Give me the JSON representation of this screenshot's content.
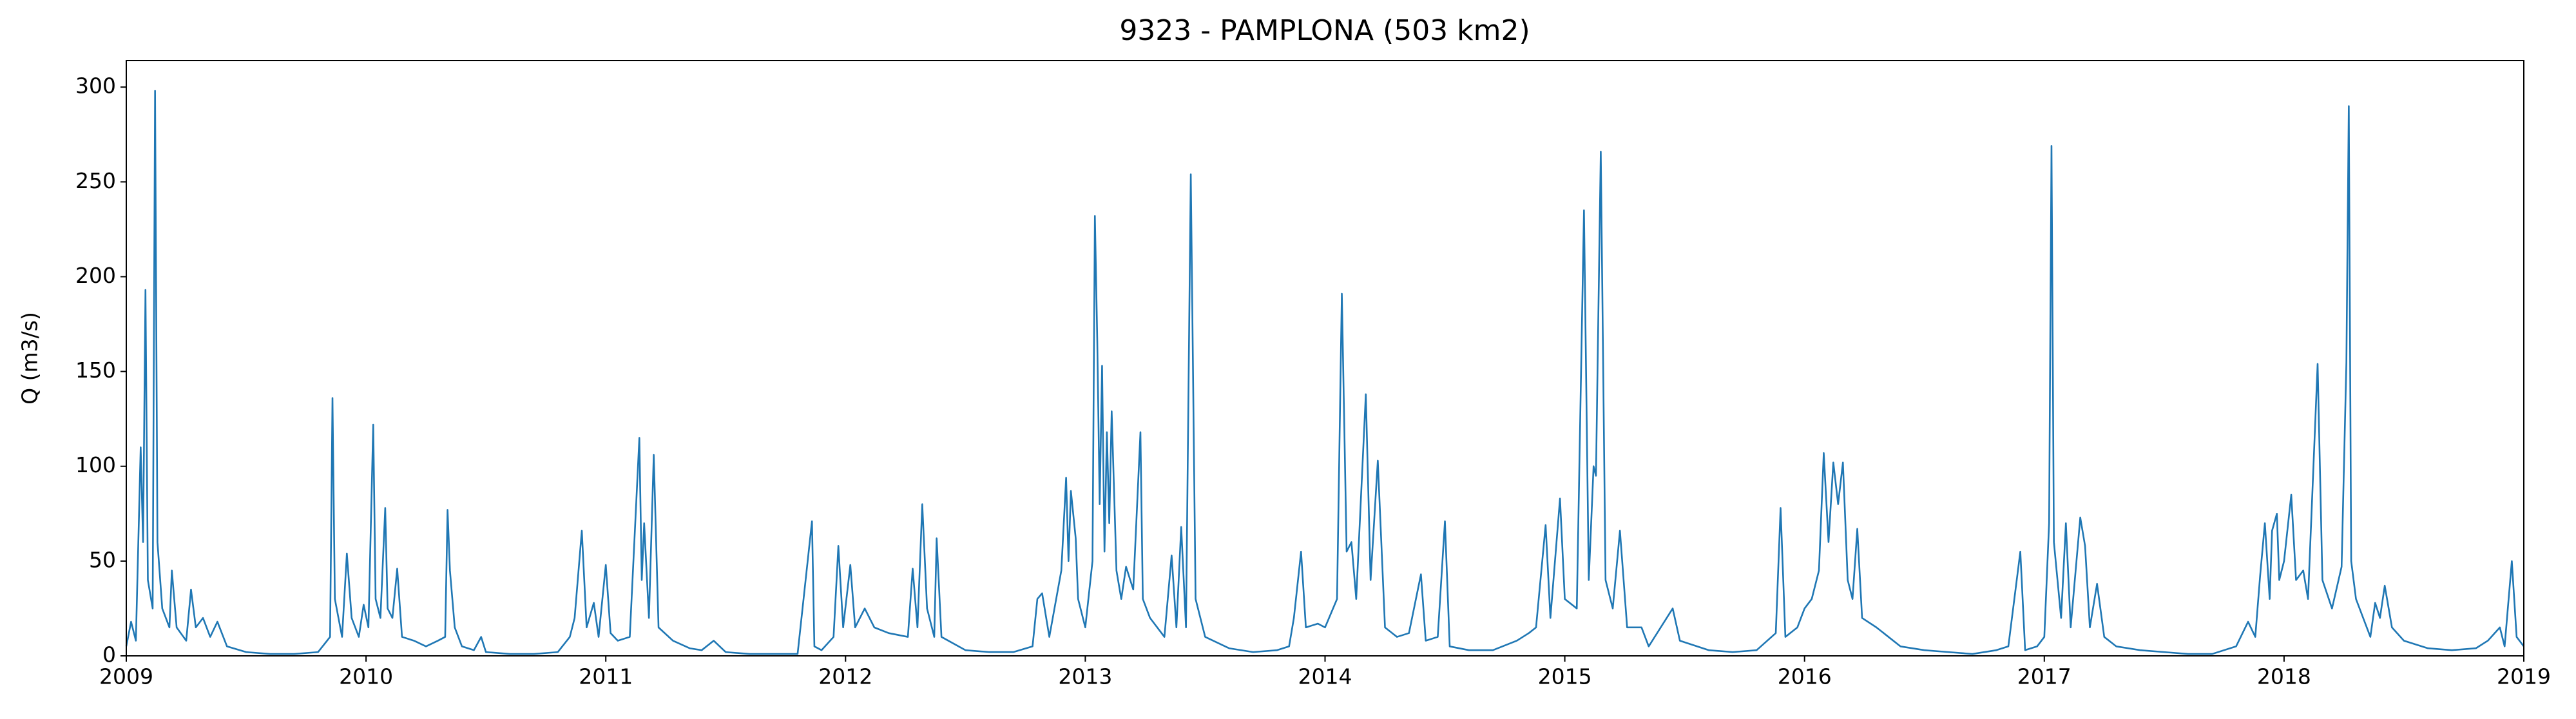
{
  "chart_data": {
    "type": "line",
    "title": "9323 - PAMPLONA (503 km2)",
    "ylabel": "Q (m3/s)",
    "xlim": [
      2009,
      2019
    ],
    "xticks": [
      2009,
      2010,
      2011,
      2012,
      2013,
      2014,
      2015,
      2016,
      2017,
      2018,
      2019
    ],
    "ylim": [
      0,
      314
    ],
    "yticks": [
      0,
      50,
      100,
      150,
      200,
      250,
      300
    ],
    "grid": false,
    "series": [
      {
        "name": "Q",
        "color": "#1f77b4",
        "x": [
          2009.0,
          2009.02,
          2009.04,
          2009.06,
          2009.07,
          2009.08,
          2009.09,
          2009.11,
          2009.12,
          2009.13,
          2009.15,
          2009.18,
          2009.19,
          2009.21,
          2009.25,
          2009.27,
          2009.29,
          2009.32,
          2009.35,
          2009.38,
          2009.42,
          2009.5,
          2009.6,
          2009.7,
          2009.8,
          2009.85,
          2009.86,
          2009.87,
          2009.9,
          2009.92,
          2009.94,
          2009.97,
          2009.99,
          2010.01,
          2010.03,
          2010.04,
          2010.06,
          2010.08,
          2010.09,
          2010.11,
          2010.13,
          2010.15,
          2010.2,
          2010.25,
          2010.3,
          2010.33,
          2010.34,
          2010.35,
          2010.37,
          2010.4,
          2010.45,
          2010.48,
          2010.5,
          2010.6,
          2010.7,
          2010.8,
          2010.85,
          2010.87,
          2010.9,
          2010.92,
          2010.95,
          2010.97,
          2011.0,
          2011.02,
          2011.05,
          2011.1,
          2011.14,
          2011.15,
          2011.16,
          2011.18,
          2011.2,
          2011.22,
          2011.28,
          2011.35,
          2011.4,
          2011.45,
          2011.5,
          2011.6,
          2011.7,
          2011.8,
          2011.86,
          2011.87,
          2011.9,
          2011.95,
          2011.97,
          2011.99,
          2012.02,
          2012.04,
          2012.08,
          2012.12,
          2012.18,
          2012.26,
          2012.28,
          2012.3,
          2012.32,
          2012.34,
          2012.37,
          2012.38,
          2012.4,
          2012.5,
          2012.6,
          2012.7,
          2012.78,
          2012.8,
          2012.82,
          2012.85,
          2012.9,
          2012.92,
          2012.93,
          2012.94,
          2012.96,
          2012.97,
          2013.0,
          2013.03,
          2013.04,
          2013.05,
          2013.06,
          2013.07,
          2013.08,
          2013.09,
          2013.1,
          2013.11,
          2013.13,
          2013.15,
          2013.17,
          2013.2,
          2013.23,
          2013.24,
          2013.27,
          2013.33,
          2013.36,
          2013.38,
          2013.4,
          2013.42,
          2013.44,
          2013.46,
          2013.5,
          2013.6,
          2013.7,
          2013.8,
          2013.85,
          2013.87,
          2013.9,
          2013.92,
          2013.97,
          2014.0,
          2014.05,
          2014.07,
          2014.09,
          2014.11,
          2014.13,
          2014.17,
          2014.19,
          2014.22,
          2014.25,
          2014.3,
          2014.35,
          2014.4,
          2014.42,
          2014.47,
          2014.5,
          2014.52,
          2014.6,
          2014.7,
          2014.8,
          2014.85,
          2014.88,
          2014.92,
          2014.94,
          2014.98,
          2015.0,
          2015.05,
          2015.08,
          2015.1,
          2015.12,
          2015.13,
          2015.15,
          2015.17,
          2015.2,
          2015.23,
          2015.26,
          2015.32,
          2015.35,
          2015.45,
          2015.48,
          2015.6,
          2015.7,
          2015.8,
          2015.88,
          2015.9,
          2015.92,
          2015.97,
          2016.0,
          2016.03,
          2016.06,
          2016.08,
          2016.1,
          2016.12,
          2016.14,
          2016.16,
          2016.18,
          2016.2,
          2016.22,
          2016.24,
          2016.3,
          2016.35,
          2016.4,
          2016.5,
          2016.6,
          2016.7,
          2016.8,
          2016.85,
          2016.9,
          2016.92,
          2016.97,
          2017.0,
          2017.02,
          2017.03,
          2017.04,
          2017.07,
          2017.09,
          2017.11,
          2017.15,
          2017.17,
          2017.19,
          2017.22,
          2017.25,
          2017.3,
          2017.4,
          2017.5,
          2017.6,
          2017.7,
          2017.8,
          2017.85,
          2017.88,
          2017.9,
          2017.92,
          2017.94,
          2017.95,
          2017.97,
          2017.98,
          2018.0,
          2018.03,
          2018.05,
          2018.08,
          2018.1,
          2018.14,
          2018.16,
          2018.2,
          2018.24,
          2018.26,
          2018.27,
          2018.28,
          2018.3,
          2018.33,
          2018.36,
          2018.38,
          2018.4,
          2018.42,
          2018.45,
          2018.5,
          2018.6,
          2018.7,
          2018.8,
          2018.85,
          2018.9,
          2018.92,
          2018.95,
          2018.97,
          2019.0
        ],
        "values": [
          5,
          18,
          8,
          110,
          60,
          193,
          40,
          25,
          298,
          60,
          25,
          15,
          45,
          15,
          8,
          35,
          15,
          20,
          10,
          18,
          5,
          2,
          1,
          1,
          2,
          10,
          136,
          30,
          10,
          54,
          20,
          10,
          27,
          15,
          122,
          30,
          20,
          78,
          25,
          20,
          46,
          10,
          8,
          5,
          8,
          10,
          77,
          45,
          15,
          5,
          3,
          10,
          2,
          1,
          1,
          2,
          10,
          20,
          66,
          15,
          28,
          10,
          48,
          12,
          8,
          10,
          115,
          40,
          70,
          20,
          106,
          15,
          8,
          4,
          3,
          8,
          2,
          1,
          1,
          1,
          71,
          5,
          3,
          10,
          58,
          15,
          48,
          15,
          25,
          15,
          12,
          10,
          46,
          15,
          80,
          25,
          10,
          62,
          10,
          3,
          2,
          2,
          5,
          30,
          33,
          10,
          45,
          94,
          50,
          87,
          62,
          30,
          15,
          50,
          232,
          166,
          80,
          153,
          55,
          118,
          70,
          129,
          45,
          30,
          47,
          35,
          118,
          30,
          20,
          10,
          53,
          15,
          68,
          15,
          254,
          30,
          10,
          4,
          2,
          3,
          5,
          20,
          55,
          15,
          17,
          15,
          30,
          191,
          55,
          60,
          30,
          138,
          40,
          103,
          15,
          10,
          12,
          43,
          8,
          10,
          71,
          5,
          3,
          3,
          8,
          12,
          15,
          69,
          20,
          83,
          30,
          25,
          235,
          40,
          100,
          95,
          266,
          40,
          25,
          66,
          15,
          15,
          5,
          25,
          8,
          3,
          2,
          3,
          12,
          78,
          10,
          15,
          25,
          30,
          45,
          107,
          60,
          102,
          80,
          102,
          40,
          30,
          67,
          20,
          15,
          10,
          5,
          3,
          2,
          1,
          3,
          5,
          55,
          3,
          5,
          10,
          70,
          269,
          60,
          20,
          70,
          15,
          73,
          58,
          15,
          38,
          10,
          5,
          3,
          2,
          1,
          1,
          5,
          18,
          10,
          42,
          70,
          30,
          66,
          75,
          40,
          50,
          85,
          40,
          45,
          30,
          154,
          40,
          25,
          47,
          155,
          290,
          50,
          30,
          20,
          10,
          28,
          20,
          37,
          15,
          8,
          4,
          3,
          4,
          8,
          15,
          5,
          50,
          10,
          5
        ]
      }
    ]
  }
}
